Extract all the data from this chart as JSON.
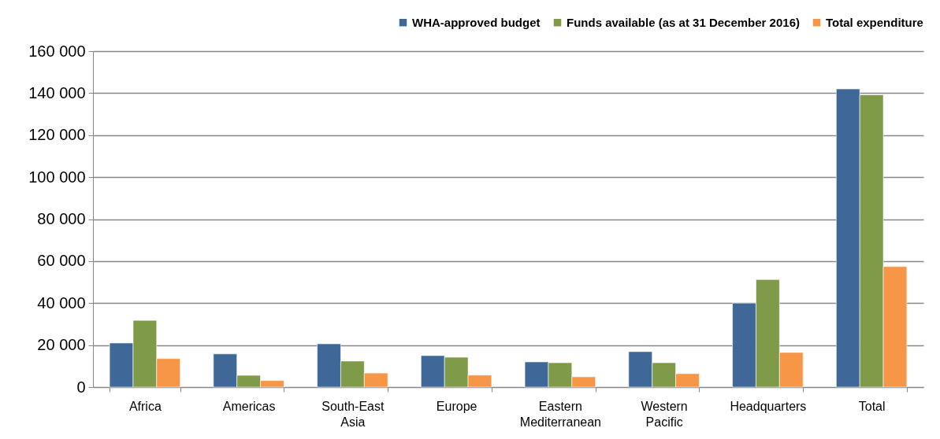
{
  "chart_data": {
    "type": "bar",
    "categories": [
      "Africa",
      "Americas",
      "South-East Asia",
      "Europe",
      "Eastern Mediterranean",
      "Western Pacific",
      "Headquarters",
      "Total"
    ],
    "series": [
      {
        "name": "WHA-approved budget",
        "color": "#3f6899",
        "values": [
          21000,
          15800,
          20600,
          15000,
          12000,
          16900,
          40000,
          142000
        ]
      },
      {
        "name": "Funds available (as at 31 December 2016)",
        "color": "#7f9a48",
        "values": [
          31800,
          5600,
          12400,
          14200,
          11600,
          11600,
          51200,
          139200
        ]
      },
      {
        "name": "Total expenditure",
        "color": "#f79646",
        "values": [
          13600,
          3100,
          6700,
          5700,
          4900,
          6400,
          16500,
          57400
        ]
      }
    ],
    "ylim": [
      0,
      160000
    ],
    "yticks": [
      {
        "value": 0,
        "label": "0"
      },
      {
        "value": 20000,
        "label": "20 000"
      },
      {
        "value": 40000,
        "label": "40 000"
      },
      {
        "value": 60000,
        "label": "60 000"
      },
      {
        "value": 80000,
        "label": "80 000"
      },
      {
        "value": 100000,
        "label": "100 000"
      },
      {
        "value": 120000,
        "label": "120 000"
      },
      {
        "value": 140000,
        "label": "140 000"
      },
      {
        "value": 160000,
        "label": "160 000"
      }
    ],
    "grid": "y",
    "legend": "top right"
  }
}
